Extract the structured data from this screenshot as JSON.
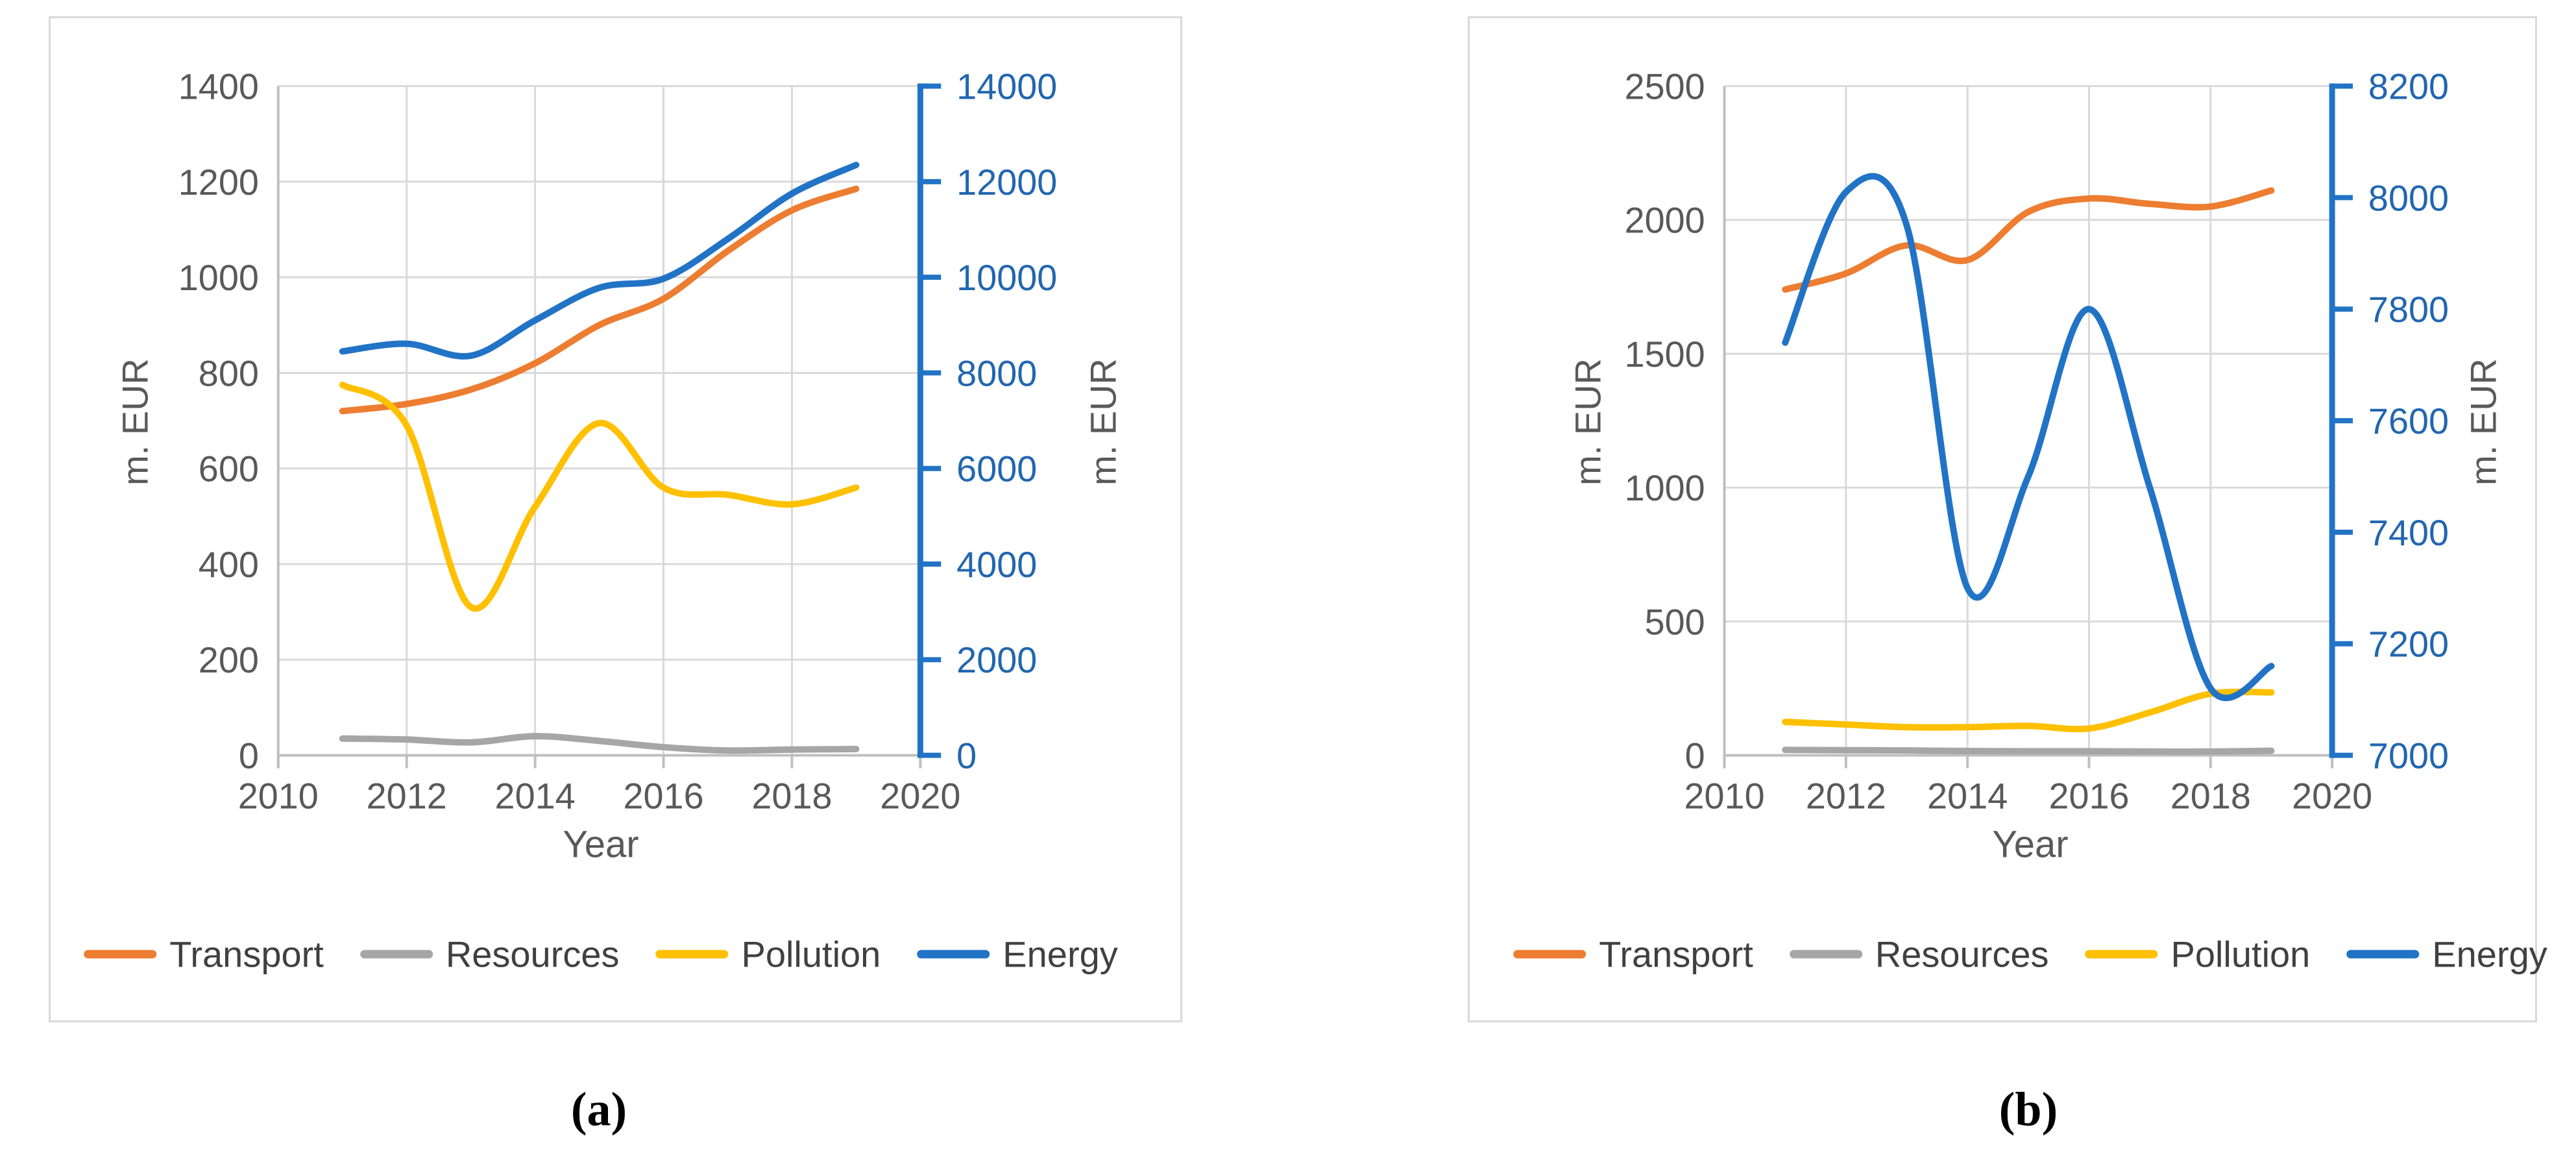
{
  "figure": {
    "background": "#ffffff"
  },
  "colors": {
    "orange": "#ED7D31",
    "gray": "#A6A6A6",
    "yellow": "#FFC000",
    "blue_line": "#2173C6",
    "blue_text": "#2266B0",
    "tick_text": "#595959",
    "legend_text": "#404040",
    "gridline": "#D9D9D9",
    "axis_line": "#BFBFBF",
    "panel_border": "#D9D9D9"
  },
  "chart_data": [
    {
      "id": "a",
      "type": "line",
      "caption": "(a)",
      "title": "",
      "xlabel": "Year",
      "ylabel_left": "m. EUR",
      "ylabel_right": "m. EUR",
      "grid": true,
      "legend_position": "bottom",
      "xlim": [
        2010,
        2020
      ],
      "x_ticks": [
        2010,
        2012,
        2014,
        2016,
        2018,
        2020
      ],
      "left_ylim": [
        0,
        1400
      ],
      "left_ticks": [
        0,
        200,
        400,
        600,
        800,
        1000,
        1200,
        1400
      ],
      "right_ylim": [
        0,
        14000
      ],
      "right_ticks": [
        0,
        2000,
        4000,
        6000,
        8000,
        10000,
        12000,
        14000
      ],
      "years": [
        2011,
        2012,
        2013,
        2014,
        2015,
        2016,
        2017,
        2018,
        2019
      ],
      "series": [
        {
          "name": "Transport",
          "axis": "left",
          "color": "#ED7D31",
          "values": [
            720,
            735,
            765,
            820,
            900,
            955,
            1055,
            1140,
            1185
          ]
        },
        {
          "name": "Resources",
          "axis": "left",
          "color": "#A6A6A6",
          "values": [
            35,
            33,
            27,
            40,
            30,
            17,
            10,
            12,
            13
          ]
        },
        {
          "name": "Pollution",
          "axis": "left",
          "color": "#FFC000",
          "values": [
            775,
            690,
            310,
            520,
            695,
            560,
            545,
            525,
            560
          ]
        },
        {
          "name": "Energy",
          "axis": "right",
          "color": "#2173C6",
          "values": [
            8450,
            8610,
            8360,
            9100,
            9780,
            9970,
            10800,
            11750,
            12350
          ]
        }
      ]
    },
    {
      "id": "b",
      "type": "line",
      "caption": "(b)",
      "title": "",
      "xlabel": "Year",
      "ylabel_left": "m. EUR",
      "ylabel_right": "m. EUR",
      "grid": true,
      "legend_position": "bottom",
      "xlim": [
        2010,
        2020
      ],
      "x_ticks": [
        2010,
        2012,
        2014,
        2016,
        2018,
        2020
      ],
      "left_ylim": [
        0,
        2500
      ],
      "left_ticks": [
        0,
        500,
        1000,
        1500,
        2000,
        2500
      ],
      "right_ylim": [
        7000,
        8200
      ],
      "right_ticks": [
        7000,
        7200,
        7400,
        7600,
        7800,
        8000,
        8200
      ],
      "years": [
        2011,
        2012,
        2013,
        2014,
        2015,
        2016,
        2017,
        2018,
        2019
      ],
      "series": [
        {
          "name": "Transport",
          "axis": "left",
          "color": "#ED7D31",
          "values": [
            1740,
            1800,
            1905,
            1850,
            2030,
            2080,
            2060,
            2050,
            2110
          ]
        },
        {
          "name": "Resources",
          "axis": "left",
          "color": "#A6A6A6",
          "values": [
            20,
            19,
            18,
            16,
            15,
            15,
            14,
            14,
            17
          ]
        },
        {
          "name": "Pollution",
          "axis": "left",
          "color": "#FFC000",
          "values": [
            125,
            115,
            105,
            105,
            110,
            100,
            160,
            230,
            235
          ]
        },
        {
          "name": "Energy",
          "axis": "right",
          "color": "#2173C6",
          "values": [
            7740,
            8010,
            7950,
            7300,
            7500,
            7800,
            7480,
            7120,
            7160
          ]
        }
      ]
    }
  ]
}
